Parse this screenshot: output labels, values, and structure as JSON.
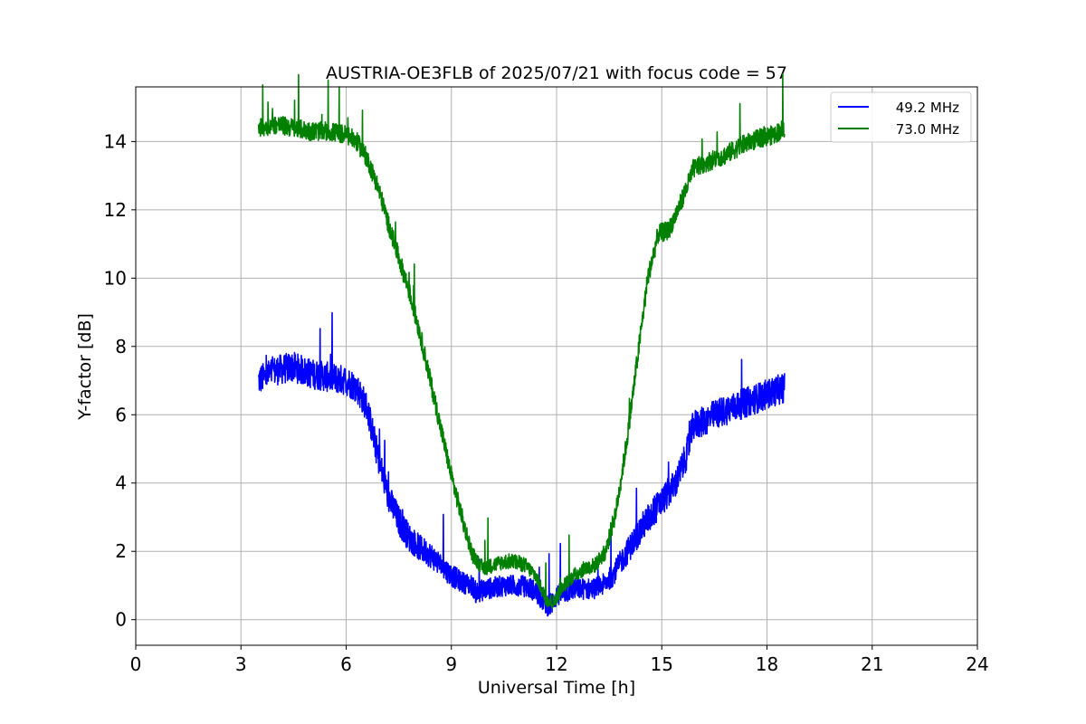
{
  "chart_data": {
    "type": "line",
    "title": "AUSTRIA-OE3FLB of 2025/07/21 with focus code = 57",
    "xlabel": "Universal Time [h]",
    "ylabel": "Y-factor [dB]",
    "xlim": [
      0,
      24
    ],
    "ylim": [
      -0.75,
      15.6
    ],
    "xticks": [
      0,
      3,
      6,
      9,
      12,
      15,
      18,
      21,
      24
    ],
    "yticks": [
      0,
      2,
      4,
      6,
      8,
      10,
      12,
      14
    ],
    "grid": true,
    "legend_position": "top-right",
    "series": [
      {
        "name": "49.2 MHz",
        "color": "#0000ff",
        "noise": 0.55,
        "x": [
          3.5,
          4.0,
          4.5,
          5.0,
          5.5,
          6.0,
          6.3,
          6.6,
          6.9,
          7.2,
          7.5,
          7.8,
          8.1,
          8.4,
          8.7,
          9.0,
          9.3,
          9.6,
          9.7,
          10.0,
          10.5,
          11.0,
          11.3,
          11.6,
          11.8,
          12.0,
          12.5,
          13.0,
          13.3,
          13.6,
          13.9,
          14.2,
          14.5,
          14.8,
          15.1,
          15.4,
          15.7,
          15.9,
          16.2,
          16.5,
          17.0,
          17.5,
          18.0,
          18.5
        ],
        "y": [
          7.0,
          7.3,
          7.4,
          7.2,
          7.1,
          7.0,
          6.8,
          6.2,
          4.8,
          3.6,
          2.9,
          2.4,
          2.1,
          1.9,
          1.6,
          1.3,
          1.1,
          1.0,
          0.8,
          0.9,
          1.0,
          1.0,
          0.9,
          0.6,
          0.4,
          0.7,
          0.9,
          0.9,
          1.0,
          1.3,
          1.8,
          2.3,
          2.8,
          3.2,
          3.6,
          4.0,
          4.8,
          5.7,
          5.8,
          6.0,
          6.2,
          6.4,
          6.6,
          6.8
        ]
      },
      {
        "name": "73.0 MHz",
        "color": "#008000",
        "noise": 0.35,
        "x": [
          3.5,
          4.0,
          4.5,
          5.0,
          5.5,
          6.0,
          6.3,
          6.6,
          6.9,
          7.2,
          7.5,
          7.8,
          8.1,
          8.4,
          8.7,
          9.0,
          9.3,
          9.6,
          9.9,
          10.2,
          10.5,
          10.8,
          11.1,
          11.4,
          11.7,
          11.9,
          12.2,
          12.5,
          12.8,
          13.1,
          13.4,
          13.7,
          14.0,
          14.3,
          14.6,
          14.9,
          15.2,
          15.5,
          15.8,
          15.9,
          16.3,
          16.8,
          17.3,
          17.8,
          18.2,
          18.5
        ],
        "y": [
          14.4,
          14.5,
          14.4,
          14.3,
          14.3,
          14.2,
          14.0,
          13.5,
          12.7,
          11.6,
          10.6,
          9.6,
          8.4,
          7.0,
          5.6,
          4.2,
          3.0,
          1.9,
          1.5,
          1.6,
          1.7,
          1.7,
          1.6,
          1.3,
          0.6,
          0.5,
          1.0,
          1.3,
          1.5,
          1.6,
          2.0,
          3.2,
          5.2,
          7.6,
          10.0,
          11.3,
          11.4,
          12.1,
          12.9,
          13.2,
          13.4,
          13.6,
          13.9,
          14.1,
          14.2,
          14.4
        ]
      }
    ]
  }
}
